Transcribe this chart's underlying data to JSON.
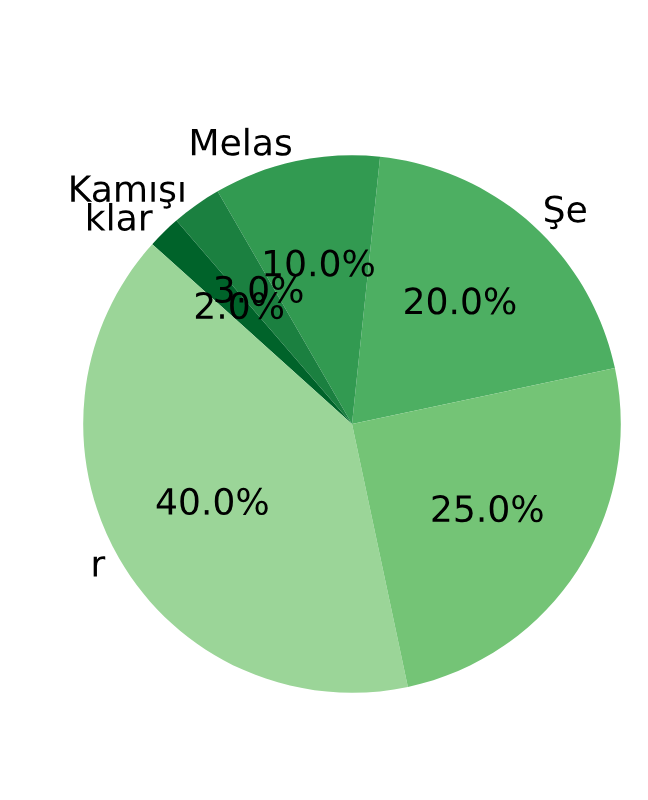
{
  "chart_data": {
    "type": "pie",
    "categories": [
      "Şe",
      "Melas",
      "Kamışı",
      "klar",
      "r",
      null
    ],
    "values": [
      20,
      10,
      3,
      2,
      40,
      25
    ],
    "value_labels": [
      "20.0%",
      "10.0%",
      "3.0%",
      "2.0%",
      "40.0%",
      "25.0%"
    ],
    "colors": [
      "#4daf62",
      "#329a51",
      "#1b8040",
      "#00632a",
      "#9bd598",
      "#74c476"
    ]
  }
}
